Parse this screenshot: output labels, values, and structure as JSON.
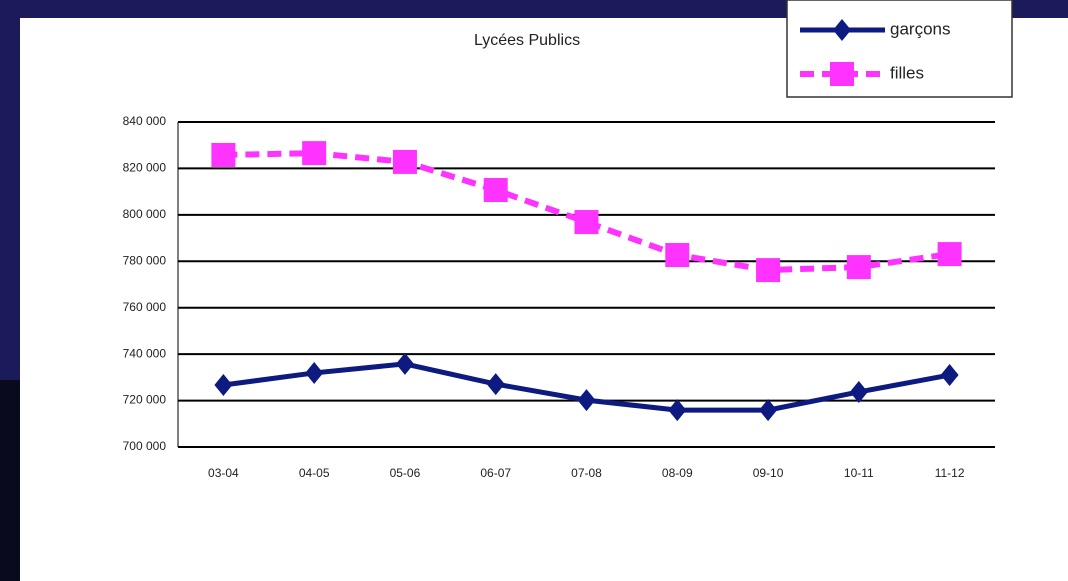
{
  "chart_data": {
    "type": "line",
    "title": "Lycées Publics",
    "categories": [
      "03-04",
      "04-05",
      "05-06",
      "06-07",
      "07-08",
      "08-09",
      "09-10",
      "10-11",
      "11-12"
    ],
    "series": [
      {
        "name": "garçons",
        "color": "#0d1a80",
        "dash": false,
        "marker": "diamond",
        "values": [
          726700,
          731900,
          735800,
          727100,
          720200,
          715900,
          715900,
          723700,
          731000
        ]
      },
      {
        "name": "filles",
        "color": "#ff33ff",
        "dash": true,
        "marker": "square",
        "values": [
          825800,
          826600,
          822800,
          810700,
          796900,
          782700,
          776200,
          777500,
          783100
        ]
      }
    ],
    "ylim": [
      700000,
      840000
    ],
    "yticks": [
      {
        "value": 700000,
        "label": "700 000"
      },
      {
        "value": 720000,
        "label": "720 000"
      },
      {
        "value": 740000,
        "label": "740 000"
      },
      {
        "value": 760000,
        "label": "760 000"
      },
      {
        "value": 780000,
        "label": "780 000"
      },
      {
        "value": 800000,
        "label": "800 000"
      },
      {
        "value": 820000,
        "label": "820 000"
      },
      {
        "value": 840000,
        "label": "840 000"
      }
    ],
    "grid": true
  }
}
